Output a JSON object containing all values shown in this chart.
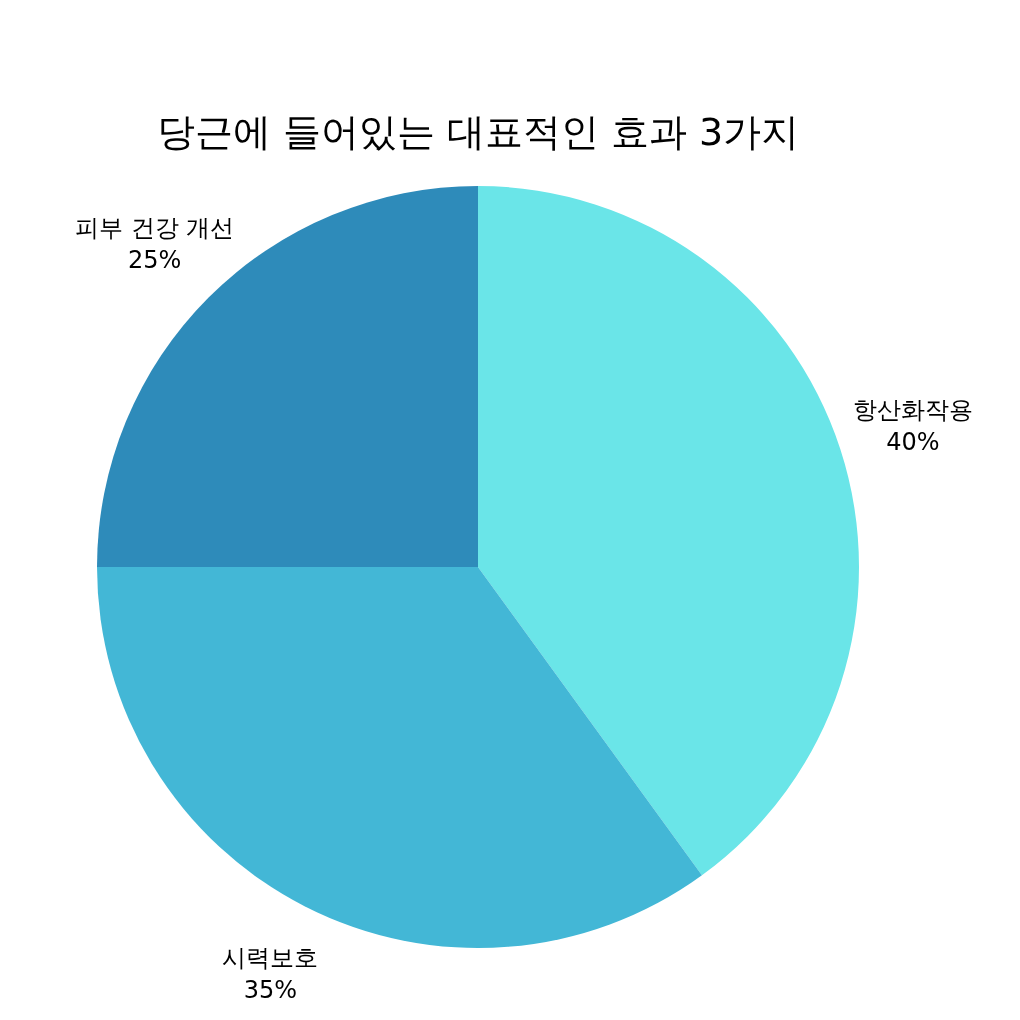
{
  "chart_data": {
    "type": "pie",
    "title": "당근에 들어있는 대표적인 효과 3가지",
    "categories": [
      "항산화작용",
      "시력보호",
      "피부 건강 개선"
    ],
    "values": [
      40,
      35,
      25
    ],
    "value_labels": [
      "40%",
      "35%",
      "25%"
    ],
    "colors": [
      "#6ae5e8",
      "#43b7d6",
      "#2e8bba"
    ]
  }
}
